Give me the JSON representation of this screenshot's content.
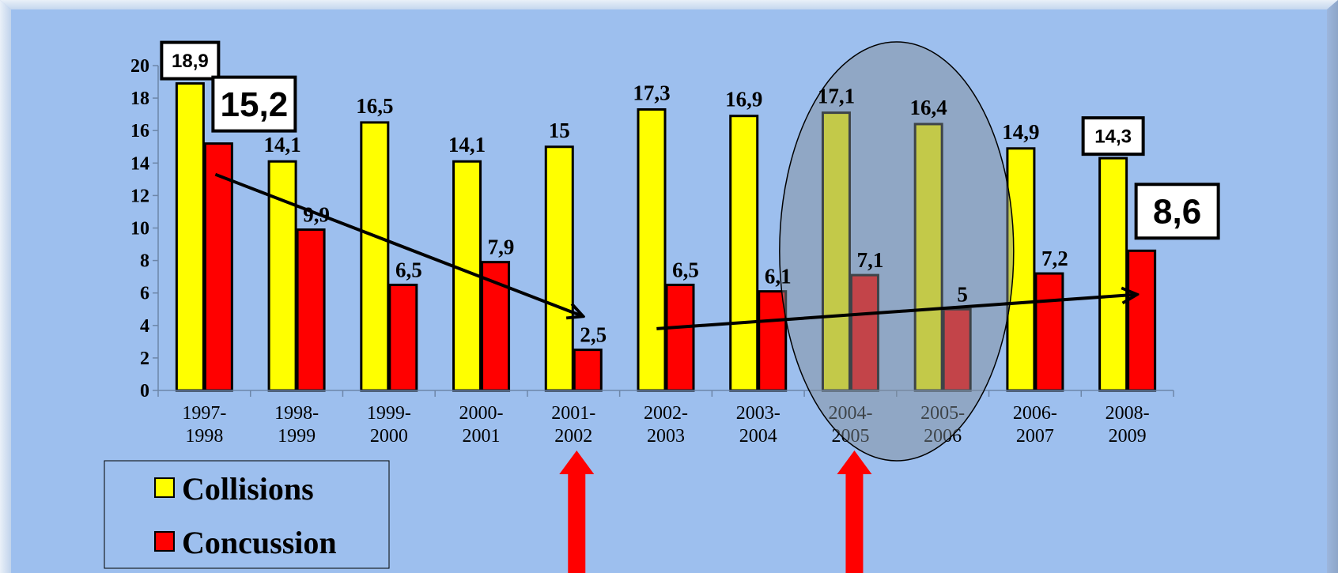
{
  "chart_data": {
    "type": "bar",
    "categories": [
      [
        "1997-",
        "1998"
      ],
      [
        "1998-",
        "1999"
      ],
      [
        "1999-",
        "2000"
      ],
      [
        "2000-",
        "2001"
      ],
      [
        "2001-",
        "2002"
      ],
      [
        "2002-",
        "2003"
      ],
      [
        "2003-",
        "2004"
      ],
      [
        "2004-",
        "2005"
      ],
      [
        "2005-",
        "2006"
      ],
      [
        "2006-",
        "2007"
      ],
      [
        "2008-",
        "2009"
      ]
    ],
    "series": [
      {
        "name": "Collisions",
        "color": "#ffff00",
        "values": [
          18.9,
          14.1,
          16.5,
          14.1,
          15,
          17.3,
          16.9,
          17.1,
          16.4,
          14.9,
          14.3
        ],
        "labels": [
          "18,9",
          "14,1",
          "16,5",
          "14,1",
          "15",
          "17,3",
          "16,9",
          "17,1",
          "16,4",
          "14,9",
          "14,3"
        ]
      },
      {
        "name": "Concussion",
        "color": "#ff0000",
        "values": [
          15.2,
          9.9,
          6.5,
          7.9,
          2.5,
          6.5,
          6.1,
          7.1,
          5,
          7.2,
          8.6
        ],
        "labels": [
          "15,2",
          "9,9",
          "6,5",
          "7,9",
          "2,5",
          "6,5",
          "6,1",
          "7,1",
          "5",
          "7,2",
          "8,6"
        ]
      }
    ],
    "boxed_labels": [
      {
        "series": 0,
        "index": 0
      },
      {
        "series": 1,
        "index": 0
      },
      {
        "series": 0,
        "index": 10
      },
      {
        "series": 1,
        "index": 10
      }
    ],
    "ylim": [
      0,
      20
    ],
    "yticks": [
      0,
      2,
      4,
      6,
      8,
      10,
      12,
      14,
      16,
      18,
      20
    ],
    "grid": false,
    "legend": "bottom-left",
    "annotations": {
      "trend_lines": [
        {
          "from": {
            "index": 0,
            "value": 13.3
          },
          "to": {
            "index": 4,
            "value": 4.6
          }
        },
        {
          "from": {
            "index": 4.9,
            "value": 3.8
          },
          "to": {
            "index": 10,
            "value": 5.9
          }
        }
      ],
      "highlight_ellipse_categories": [
        7,
        8
      ],
      "up_arrows_under_categories": [
        4,
        7
      ]
    }
  }
}
